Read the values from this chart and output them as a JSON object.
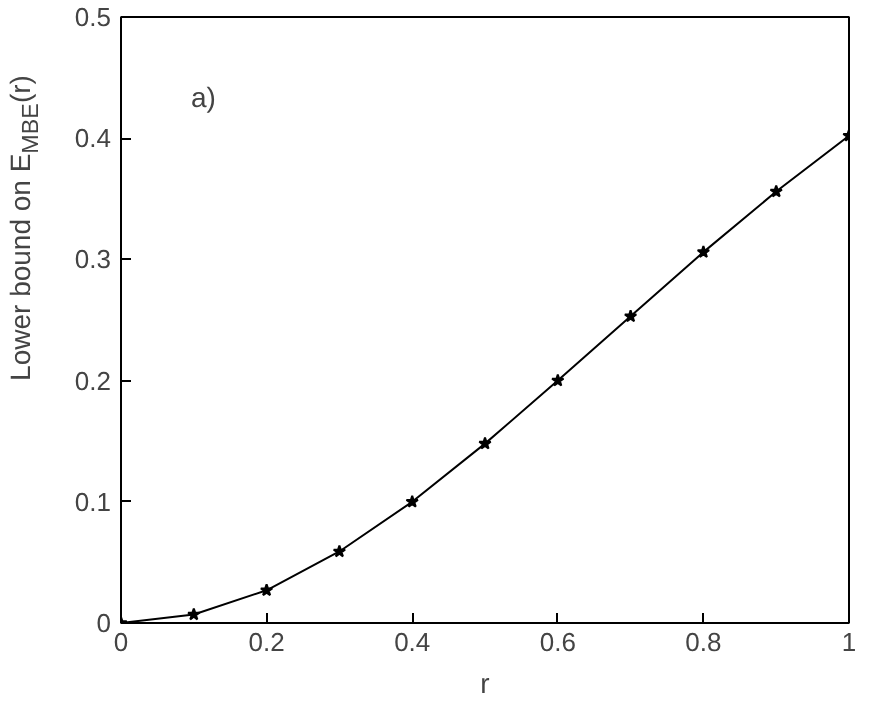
{
  "chart_data": {
    "type": "line",
    "xlabel": "r",
    "ylabel": "Lower bound on E$_{MBE}$(r)",
    "x": [
      0,
      0.1,
      0.2,
      0.3,
      0.4,
      0.5,
      0.6,
      0.7,
      0.8,
      0.9,
      1.0
    ],
    "series": [
      {
        "color": "#000000",
        "values": [
          0,
          0.007,
          0.027,
          0.059,
          0.1,
          0.148,
          0.2,
          0.253,
          0.306,
          0.356,
          0.402
        ]
      }
    ],
    "marker": "star",
    "line_style": "solid",
    "xlim": [
      0,
      1
    ],
    "ylim": [
      0,
      0.5
    ],
    "xticks": [
      0,
      0.2,
      0.4,
      0.6,
      0.8,
      1
    ],
    "yticks": [
      0,
      0.1,
      0.2,
      0.3,
      0.4,
      0.5
    ],
    "annotations": [
      "a)"
    ],
    "grid": false
  }
}
